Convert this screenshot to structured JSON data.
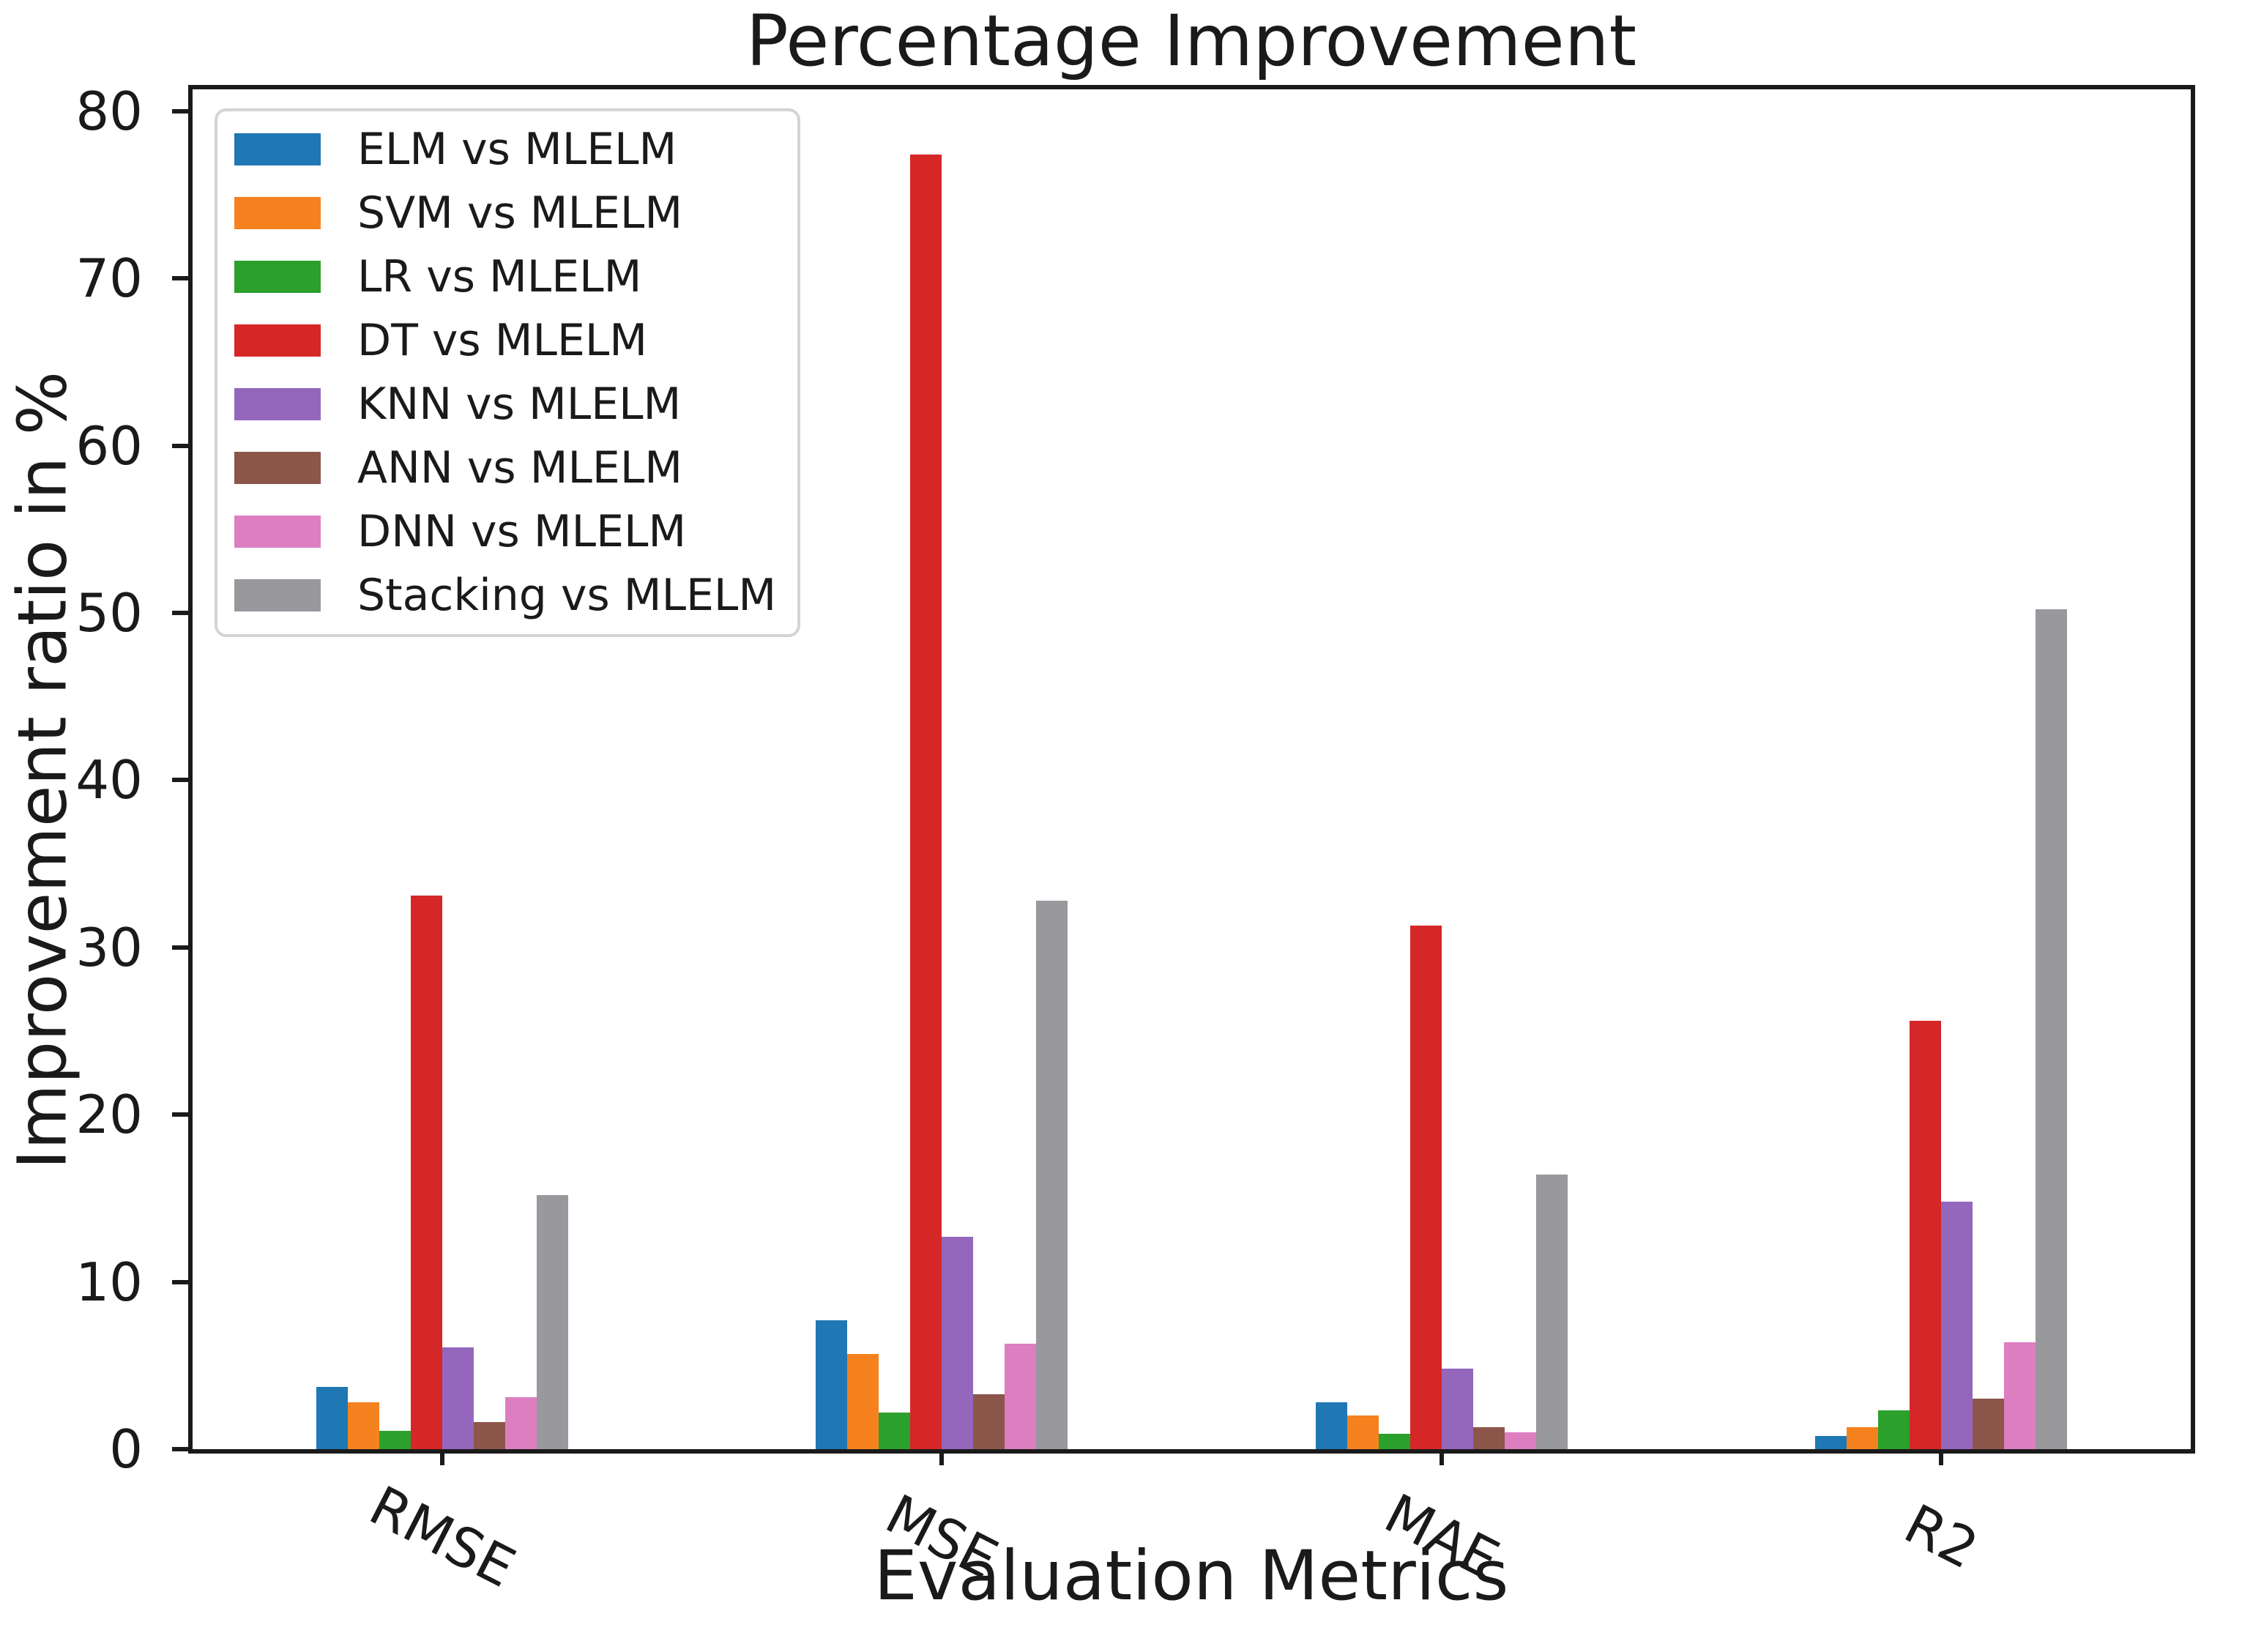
{
  "chart_data": {
    "type": "bar",
    "title": "Percentage Improvement",
    "xlabel": "Evaluation Metrics",
    "ylabel": "Improvement ratio in %",
    "categories": [
      "RMSE",
      "MSE",
      "MAE",
      "R2"
    ],
    "series": [
      {
        "name": "ELM vs MLELM",
        "color": "#1f77b4",
        "values": [
          3.7,
          7.7,
          2.8,
          0.8
        ]
      },
      {
        "name": "SVM vs MLELM",
        "color": "#f5821f",
        "values": [
          2.8,
          5.7,
          2.0,
          1.3
        ]
      },
      {
        "name": "LR vs MLELM",
        "color": "#2ca02c",
        "values": [
          1.1,
          2.2,
          0.9,
          2.3
        ]
      },
      {
        "name": "DT vs MLELM",
        "color": "#d62728",
        "values": [
          33.1,
          77.4,
          31.3,
          25.6
        ]
      },
      {
        "name": "KNN vs MLELM",
        "color": "#9467bd",
        "values": [
          6.1,
          12.7,
          4.8,
          14.8
        ]
      },
      {
        "name": "ANN vs MLELM",
        "color": "#8c564b",
        "values": [
          1.6,
          3.3,
          1.3,
          3.0
        ]
      },
      {
        "name": "DNN vs MLELM",
        "color": "#dc7ec0",
        "values": [
          3.1,
          6.3,
          1.0,
          6.4
        ]
      },
      {
        "name": "Stacking vs MLELM",
        "color": "#98989d",
        "values": [
          15.2,
          32.8,
          16.4,
          50.2
        ]
      }
    ],
    "y_ticks": [
      0,
      10,
      20,
      30,
      40,
      50,
      60,
      70,
      80
    ],
    "ylim": [
      0,
      81.3
    ],
    "grid": false,
    "legend_position": "upper left",
    "axis_color": "#1a1a1a"
  }
}
